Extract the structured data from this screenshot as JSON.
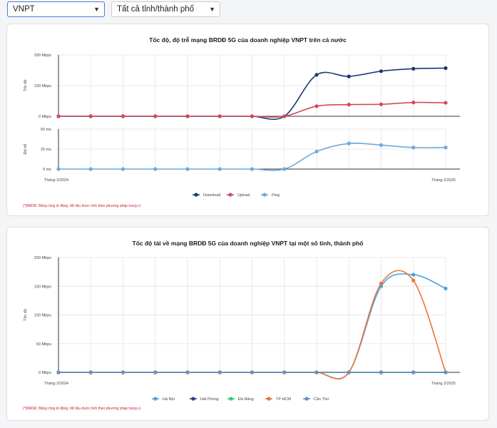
{
  "filters": {
    "provider": "VNPT",
    "region": "Tất cả tỉnh/thành phố"
  },
  "footnote": "(*)BRDĐ: Băng rộng di động; dữ liệu được tính theo phương pháp trung vị",
  "chart_data": [
    {
      "type": "line",
      "title": "Tốc độ, độ trễ mạng BRDĐ 5G của doanh nghiệp VNPT trên cả nước",
      "x": [
        "Tháng 2/2024",
        "",
        "",
        "",
        "",
        "",
        "",
        "",
        "",
        "",
        "",
        "",
        "Tháng 2/2025"
      ],
      "x_tick_labels": {
        "first": "Tháng 2/2024",
        "last": "Tháng 2/2025"
      },
      "grid": true,
      "legend_position": "bottom",
      "panels": [
        {
          "ylabel": "Tốc độ",
          "ylim": [
            0,
            200
          ],
          "y_ticks": [
            "200 Mbps",
            "100 Mbps",
            "0 Mbps"
          ],
          "y_tick_values": [
            200,
            100,
            0
          ],
          "series": [
            {
              "name": "Download",
              "color": "#1a3a6e",
              "values": [
                0,
                0,
                0,
                0,
                0,
                0,
                0,
                0,
                135,
                130,
                147,
                155,
                157
              ]
            },
            {
              "name": "Upload",
              "color": "#d1495b",
              "values": [
                0,
                0,
                0,
                0,
                0,
                0,
                0,
                0,
                33,
                38,
                39,
                45,
                44
              ]
            }
          ]
        },
        {
          "ylabel": "Độ trễ",
          "ylim": [
            0,
            50
          ],
          "y_ticks": [
            "50 ms",
            "25 ms",
            "0 ms"
          ],
          "y_tick_values": [
            50,
            25,
            0
          ],
          "series": [
            {
              "name": "Ping",
              "color": "#6fa8dc",
              "values": [
                0,
                0,
                0,
                0,
                0,
                0,
                0,
                0,
                22,
                32,
                30,
                27,
                27
              ]
            }
          ]
        }
      ],
      "legend": [
        {
          "name": "Download",
          "color": "#1a3a6e"
        },
        {
          "name": "Upload",
          "color": "#d1495b"
        },
        {
          "name": "Ping",
          "color": "#6fa8dc"
        }
      ]
    },
    {
      "type": "line",
      "title": "Tốc độ tải về mạng BRDĐ 5G của doanh nghiệp VNPT tại một số tỉnh, thành phố",
      "x": [
        "Tháng 2/2024",
        "",
        "",
        "",
        "",
        "",
        "",
        "",
        "",
        "",
        "",
        "",
        "Tháng 2/2025"
      ],
      "x_tick_labels": {
        "first": "Tháng 2/2024",
        "last": "Tháng 2/2025"
      },
      "ylabel": "Tốc độ",
      "ylim": [
        0,
        200
      ],
      "y_ticks": [
        "200 Mbps",
        "150 Mbps",
        "100 Mbps",
        "50 Mbps",
        "0 Mbps"
      ],
      "y_tick_values": [
        200,
        150,
        100,
        50,
        0
      ],
      "grid": true,
      "legend_position": "bottom",
      "series": [
        {
          "name": "Hà Nội",
          "color": "#4aa3df",
          "values": [
            0,
            0,
            0,
            0,
            0,
            0,
            0,
            0,
            0,
            0,
            150,
            170,
            146
          ]
        },
        {
          "name": "Hải Phòng",
          "color": "#2a3f8f",
          "values": [
            0,
            0,
            0,
            0,
            0,
            0,
            0,
            0,
            0,
            0,
            0,
            0,
            0
          ]
        },
        {
          "name": "Đà Nẵng",
          "color": "#2ecc71",
          "values": [
            0,
            0,
            0,
            0,
            0,
            0,
            0,
            0,
            0,
            0,
            0,
            0,
            0
          ]
        },
        {
          "name": "TP HCM",
          "color": "#e8743b",
          "values": [
            0,
            0,
            0,
            0,
            0,
            0,
            0,
            0,
            0,
            0,
            155,
            160,
            0
          ]
        },
        {
          "name": "Cần Thơ",
          "color": "#6c8ebf",
          "values": [
            0,
            0,
            0,
            0,
            0,
            0,
            0,
            0,
            0,
            0,
            0,
            0,
            0
          ]
        }
      ]
    }
  ]
}
